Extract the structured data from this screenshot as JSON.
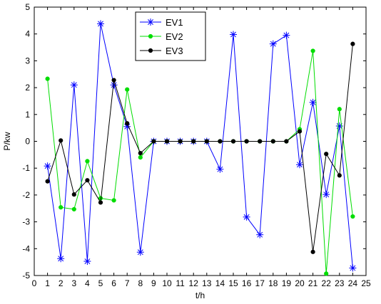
{
  "chart_data": {
    "type": "line",
    "title": "",
    "xlabel": "t/h",
    "ylabel": "P/kw",
    "xlim": [
      0,
      25
    ],
    "ylim": [
      -5,
      5
    ],
    "x_ticks": [
      0,
      1,
      2,
      3,
      4,
      5,
      6,
      7,
      8,
      9,
      10,
      11,
      12,
      13,
      14,
      15,
      16,
      17,
      18,
      19,
      20,
      21,
      22,
      23,
      24,
      25
    ],
    "y_ticks": [
      -5,
      -4,
      -3,
      -2,
      -1,
      0,
      1,
      2,
      3,
      4,
      5
    ],
    "grid": false,
    "legend_position": "top-center",
    "x": [
      1,
      2,
      3,
      4,
      5,
      6,
      7,
      8,
      9,
      10,
      11,
      12,
      13,
      14,
      15,
      16,
      17,
      18,
      19,
      20,
      21,
      22,
      23,
      24
    ],
    "series": [
      {
        "name": "EV1",
        "color": "#0000ff",
        "marker": "star",
        "values": [
          -0.92,
          -4.37,
          2.1,
          -4.47,
          4.38,
          2.1,
          0.55,
          -4.13,
          0,
          0,
          0,
          0,
          0,
          -1.04,
          3.98,
          -2.82,
          -3.48,
          3.63,
          3.95,
          -0.87,
          1.45,
          -1.98,
          0.57,
          -4.72
        ]
      },
      {
        "name": "EV2",
        "color": "#00dd00",
        "marker": "dot",
        "values": [
          2.33,
          -2.46,
          -2.53,
          -0.74,
          -2.12,
          -2.2,
          1.93,
          -0.6,
          0,
          0,
          0,
          0,
          0,
          0,
          0,
          0,
          0,
          0,
          0,
          0.45,
          3.37,
          -4.93,
          1.2,
          -2.8
        ]
      },
      {
        "name": "EV3",
        "color": "#000000",
        "marker": "dot",
        "values": [
          -1.49,
          0.03,
          -1.98,
          -1.45,
          -2.28,
          2.28,
          0.67,
          -0.44,
          0,
          0,
          0,
          0,
          0,
          0,
          0,
          0,
          0,
          0,
          0,
          0.37,
          -4.12,
          -0.47,
          -1.27,
          3.63
        ]
      }
    ]
  }
}
